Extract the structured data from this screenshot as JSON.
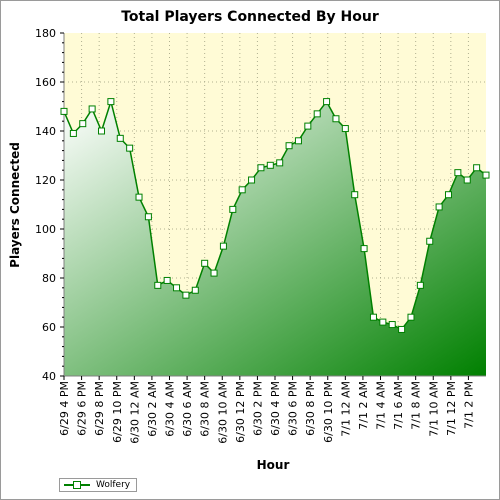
{
  "colors": {
    "series": "#008000",
    "plot_background": "#fffbd6",
    "grid": "#b0b090",
    "area_light": "#ffffff",
    "area_dark": "#008000"
  },
  "chart_data": {
    "type": "area",
    "title": "Total Players Connected By Hour",
    "xlabel": "Hour",
    "ylabel": "Players Connected",
    "ylim": [
      40,
      180
    ],
    "yticks": [
      40,
      60,
      80,
      100,
      120,
      140,
      160,
      180
    ],
    "grid": true,
    "legend_position": "bottom-left",
    "x_tick_labels": [
      "6/29 4 PM",
      "6/29 6 PM",
      "6/29 8 PM",
      "6/29 10 PM",
      "6/30 12 AM",
      "6/30 2 AM",
      "6/30 4 AM",
      "6/30 6 AM",
      "6/30 8 AM",
      "6/30 10 AM",
      "6/30 12 PM",
      "6/30 2 PM",
      "6/30 4 PM",
      "6/30 6 PM",
      "6/30 8 PM",
      "6/30 10 PM",
      "7/1 12 AM",
      "7/1 2 AM",
      "7/1 4 AM",
      "7/1 6 AM",
      "7/1 8 AM",
      "7/1 10 AM",
      "7/1 12 PM",
      "7/1 2 PM"
    ],
    "series": [
      {
        "name": "Wolfery",
        "values": [
          148,
          139,
          143,
          149,
          140,
          152,
          137,
          133,
          113,
          105,
          77,
          79,
          76,
          73,
          75,
          86,
          82,
          93,
          108,
          116,
          120,
          125,
          126,
          127,
          134,
          136,
          142,
          147,
          152,
          145,
          141,
          114,
          92,
          64,
          62,
          61,
          59,
          64,
          77,
          95,
          109,
          114,
          123,
          120,
          125,
          122
        ]
      }
    ]
  }
}
